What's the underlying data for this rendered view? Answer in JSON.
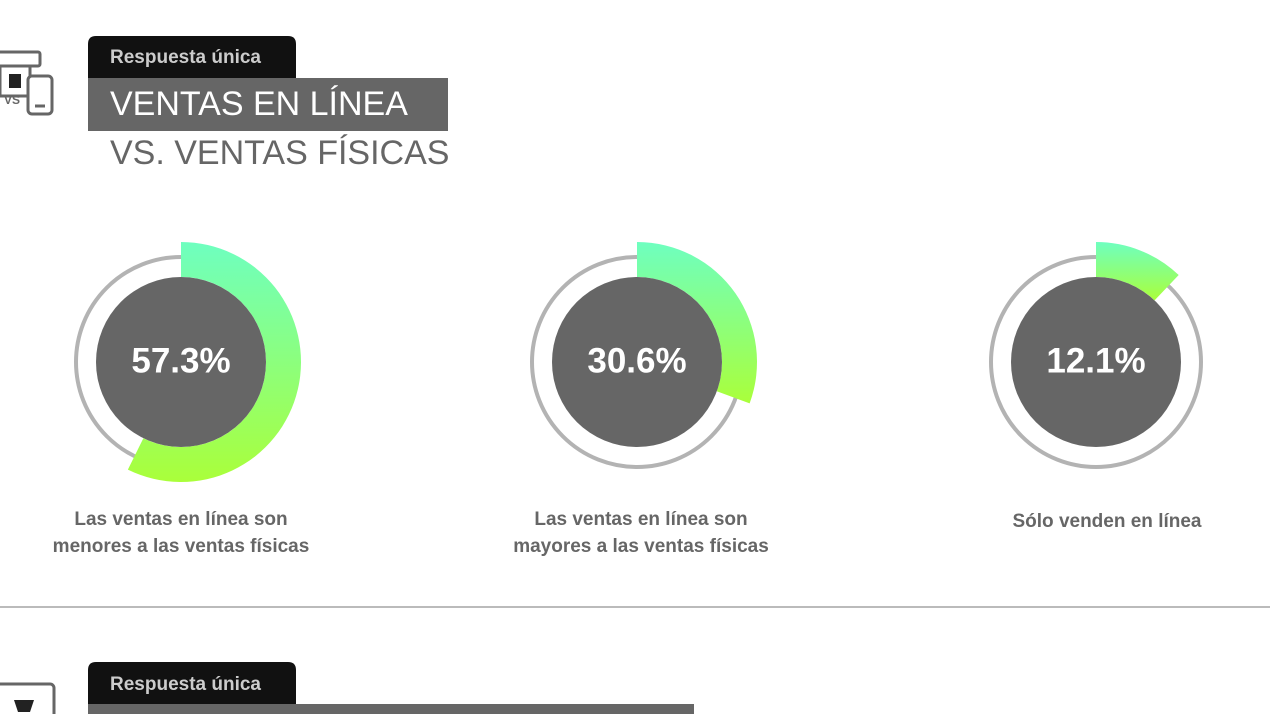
{
  "header": {
    "tag": "Respuesta única",
    "title": "VENTAS EN LÍNEA",
    "subtitle": "VS. VENTAS FÍSICAS"
  },
  "gauges": [
    {
      "value": 57.3,
      "value_label": "57.3%",
      "label": [
        "Las ventas en línea son",
        "menores a las ventas físicas"
      ]
    },
    {
      "value": 30.6,
      "value_label": "30.6%",
      "label": [
        "Las ventas en línea son",
        "mayores a las ventas físicas"
      ]
    },
    {
      "value": 12.1,
      "value_label": "12.1%",
      "label": [
        "Sólo venden en línea"
      ]
    }
  ],
  "next_header": {
    "tag": "Respuesta única"
  }
}
